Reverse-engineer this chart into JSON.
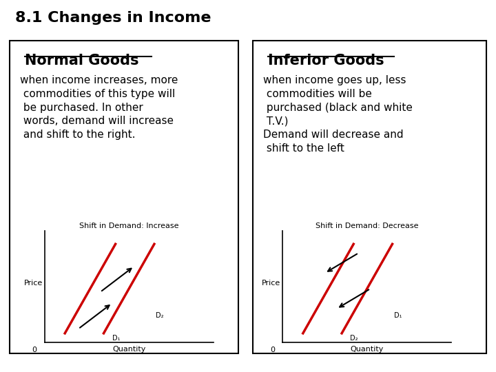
{
  "title": "8.1 Changes in Income",
  "title_fontsize": 16,
  "bg_color": "#ffffff",
  "left_box": {
    "heading": "Normal Goods",
    "heading_fontsize": 15,
    "text": "when income increases, more\n commodities of this type will\n be purchased. In other\n words, demand will increase\n and shift to the right.",
    "text_fontsize": 11,
    "graph_title": "Shift in Demand: Increase",
    "graph_title_fontsize": 8,
    "xlabel": "Quantity",
    "ylabel": "Price",
    "d1_label": "D₁",
    "d2_label": "D₂",
    "line_color": "#cc0000"
  },
  "right_box": {
    "heading": "Inferior Goods",
    "heading_fontsize": 15,
    "text": "when income goes up, less\n commodities will be\n purchased (black and white\n T.V.)\nDemand will decrease and\n shift to the left",
    "text_fontsize": 11,
    "graph_title": "Shift in Demand: Decrease",
    "graph_title_fontsize": 8,
    "xlabel": "Quantity",
    "ylabel": "Price",
    "d1_label": "D₁",
    "d2_label": "D₂",
    "line_color": "#cc0000"
  }
}
